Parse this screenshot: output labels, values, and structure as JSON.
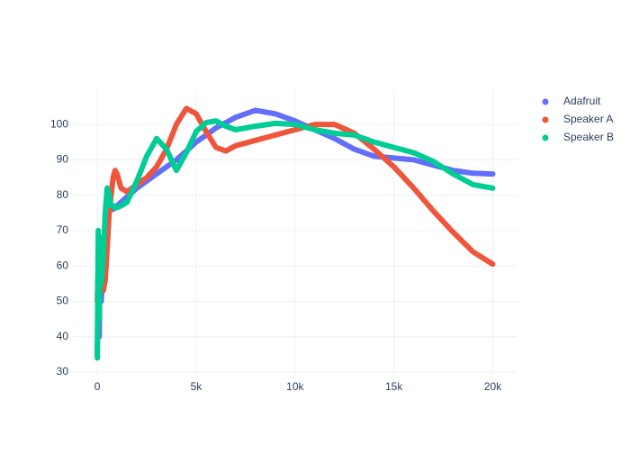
{
  "chart_data": {
    "type": "scatter",
    "x": [
      0,
      50,
      100,
      150,
      200,
      300,
      400,
      500,
      600,
      700,
      800,
      900,
      1000,
      1200,
      1500,
      2000,
      2500,
      3000,
      3500,
      4000,
      4500,
      5000,
      5500,
      6000,
      6500,
      7000,
      8000,
      9000,
      10000,
      11000,
      12000,
      13000,
      14000,
      15000,
      16000,
      17000,
      18000,
      19000,
      20000
    ],
    "series": [
      {
        "name": "Adafruit",
        "color": "#636efa",
        "values": [
          35,
          60,
          40,
          68,
          50,
          62,
          70,
          75,
          77,
          76,
          76,
          76.5,
          77,
          78,
          79.5,
          82,
          84,
          86,
          88,
          90,
          92.5,
          95,
          97,
          99,
          100.5,
          102,
          104,
          103,
          101,
          98.5,
          96,
          93,
          91,
          90.5,
          90,
          88.5,
          87,
          86.2,
          86
        ]
      },
      {
        "name": "Speaker A",
        "color": "#ef553b",
        "values": [
          50,
          60,
          52,
          58,
          55,
          53,
          56,
          65,
          75,
          80,
          85,
          87,
          86,
          82,
          81,
          83,
          85,
          88,
          93,
          100,
          104.5,
          103,
          98,
          93.5,
          92.5,
          94,
          95.5,
          97,
          98.5,
          100,
          100,
          97.5,
          93,
          88,
          82,
          75.5,
          69.5,
          64,
          60.5
        ]
      },
      {
        "name": "Speaker B",
        "color": "#00cc96",
        "values": [
          34,
          70,
          45,
          68,
          55,
          62,
          75,
          82,
          80,
          77,
          77,
          76.5,
          76.5,
          77,
          78,
          84,
          91,
          96,
          93,
          87,
          92,
          98,
          100.5,
          101,
          99.5,
          98.5,
          99.5,
          100.3,
          100,
          98.5,
          97.5,
          97,
          95,
          93.5,
          92,
          89.5,
          86,
          83,
          82
        ]
      }
    ],
    "xlim": [
      -1280,
      21250
    ],
    "xticks": [
      0,
      {
        "value": 5000,
        "label": "5k"
      },
      {
        "value": 10000,
        "label": "10k"
      },
      {
        "value": 15000,
        "label": "15k"
      },
      {
        "value": 20000,
        "label": "20k"
      }
    ],
    "ylim": [
      29.5,
      109.7
    ],
    "yticks": [
      30,
      40,
      50,
      60,
      70,
      80,
      90,
      100
    ],
    "grid": true
  }
}
